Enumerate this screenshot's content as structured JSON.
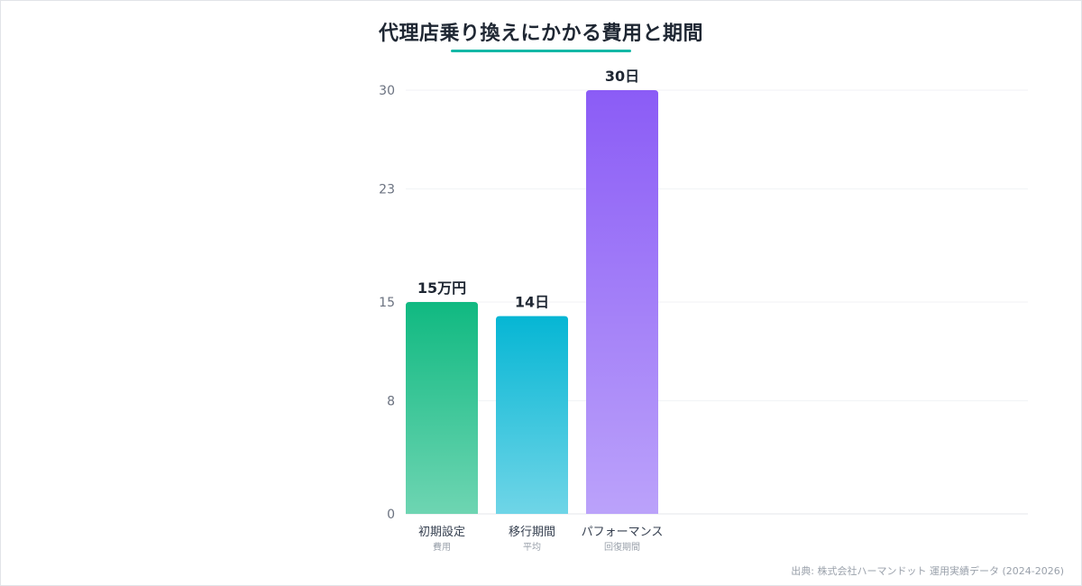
{
  "title": "代理店乗り換えにかかる費用と期間",
  "source": "出典: 株式会社ハーマンドット 運用実績データ (2024-2026)",
  "chart_data": {
    "type": "bar",
    "title": "代理店乗り換えにかかる費用と期間",
    "categories": [
      "初期設定",
      "移行期間",
      "パフォーマンス"
    ],
    "sublabels": [
      "費用",
      "平均",
      "回復期間"
    ],
    "values": [
      15,
      14,
      30
    ],
    "data_labels": [
      "15万円",
      "14日",
      "30日"
    ],
    "ylim": [
      0,
      30
    ],
    "yticks": [
      0,
      8,
      15,
      23,
      30
    ],
    "grid": true,
    "legend": "none",
    "colors": [
      {
        "top": "#10b981",
        "bottom": "#6ed5b2"
      },
      {
        "top": "#06b6d4",
        "bottom": "#6fd5e7"
      },
      {
        "top": "#8b5cf6",
        "bottom": "#bba2fa"
      }
    ]
  }
}
